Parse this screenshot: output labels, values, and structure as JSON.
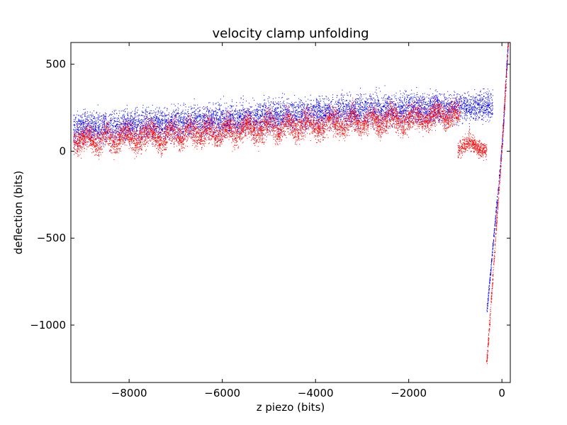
{
  "chart_data": {
    "type": "scatter",
    "title": "velocity clamp unfolding",
    "xlabel": "z piezo (bits)",
    "ylabel": "deflection (bits)",
    "xlim": [
      -9250,
      180
    ],
    "ylim": [
      -1330,
      625
    ],
    "x_ticks": [
      -8000,
      -6000,
      -4000,
      -2000,
      0
    ],
    "x_tick_labels": [
      "−8000",
      "−6000",
      "−4000",
      "−2000",
      "0"
    ],
    "y_ticks": [
      500,
      0,
      -500,
      -1000
    ],
    "y_tick_labels": [
      "500",
      "0",
      "−500",
      "−1000"
    ],
    "grid": false,
    "series": [
      {
        "color": "#0000ff",
        "approach_trend": [
          [
            -9200,
            130
          ],
          [
            -7000,
            165
          ],
          [
            -5000,
            205
          ],
          [
            -3000,
            240
          ],
          [
            -1000,
            255
          ],
          [
            -200,
            260
          ]
        ],
        "approach_noise": 45,
        "contact_line": [
          [
            -330,
            -930
          ],
          [
            0,
            30
          ],
          [
            130,
            625
          ]
        ]
      },
      {
        "color": "#ff0000",
        "retract_trend": [
          [
            -9200,
            60
          ],
          [
            -7000,
            100
          ],
          [
            -5000,
            140
          ],
          [
            -3000,
            175
          ],
          [
            -2000,
            185
          ],
          [
            -1000,
            225
          ]
        ],
        "retract_noise": 38,
        "unfolding_peaks": [
          [
            -9000,
            90
          ],
          [
            -8600,
            95
          ],
          [
            -8200,
            90
          ],
          [
            -7700,
            110
          ],
          [
            -7200,
            125
          ],
          [
            -6800,
            135
          ],
          [
            -6400,
            120
          ],
          [
            -6000,
            135
          ],
          [
            -5600,
            145
          ],
          [
            -5100,
            155
          ],
          [
            -4700,
            170
          ],
          [
            -4300,
            170
          ],
          [
            -3800,
            190
          ],
          [
            -3300,
            200
          ],
          [
            -2900,
            205
          ],
          [
            -2500,
            215
          ],
          [
            -2000,
            225
          ],
          [
            -1500,
            255
          ],
          [
            -1100,
            230
          ]
        ],
        "detached_segment": [
          [
            -950,
            10
          ],
          [
            -700,
            60
          ],
          [
            -500,
            20
          ],
          [
            -330,
            0
          ]
        ],
        "rupture_line": [
          [
            -330,
            -1220
          ],
          [
            0,
            40
          ],
          [
            130,
            625
          ]
        ]
      }
    ]
  }
}
